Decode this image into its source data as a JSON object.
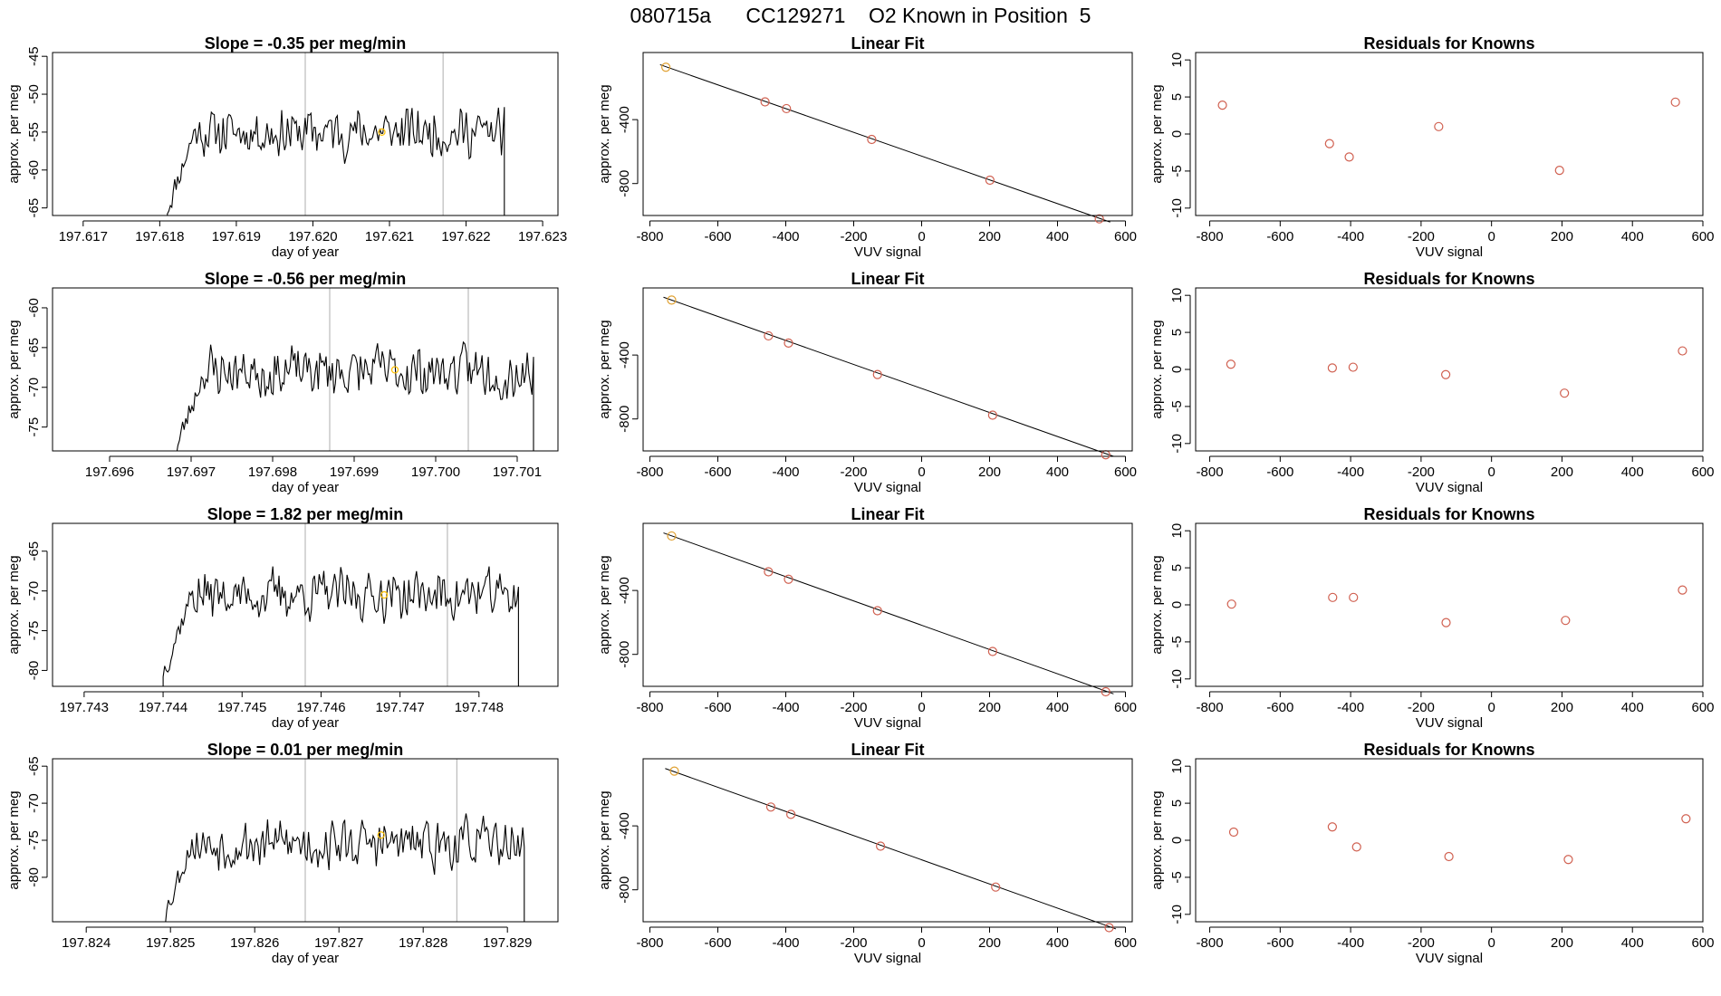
{
  "page": {
    "title": "080715a      CC129271    O2 Known in Position  5"
  },
  "colors": {
    "trace": "#000000",
    "point": "#d06050",
    "first_point": "#e0a030",
    "marker": "#ffc000",
    "vline": "#bbbbbb",
    "box": "#000000"
  },
  "chart_data": [
    {
      "type": "line",
      "row": 0,
      "panel": "time",
      "title": "Slope =  -0.35  per meg/min",
      "xlabel": "day of year",
      "ylabel": "approx. per meg",
      "xlim": [
        197.6166,
        197.6232
      ],
      "ylim": [
        -66,
        -44.5
      ],
      "xticks": [
        197.617,
        197.618,
        197.619,
        197.62,
        197.621,
        197.622,
        197.623
      ],
      "yticks": [
        -65,
        -60,
        -55,
        -50,
        -45
      ],
      "x_start": 197.6181,
      "x_end": 197.6225,
      "seed": 11,
      "base": -55,
      "amp": 2.5,
      "vlines": [
        197.6199,
        197.6217
      ],
      "marker": {
        "x": 197.6209,
        "y": -55
      }
    },
    {
      "type": "scatter",
      "row": 0,
      "panel": "fit",
      "title": "Linear Fit",
      "xlabel": "VUV signal",
      "ylabel": "approx. per meg",
      "xlim": [
        -820,
        620
      ],
      "ylim": [
        -1000,
        20
      ],
      "xticks": [
        -800,
        -600,
        -400,
        -200,
        0,
        200,
        400,
        600
      ],
      "yticks": [
        -400,
        -800
      ],
      "x": [
        -753,
        -461,
        -398,
        -147,
        201,
        523
      ],
      "y": [
        -72,
        -289,
        -331,
        -524,
        -779,
        -1021
      ],
      "line": {
        "x": [
          -770,
          555
        ],
        "y": [
          -56,
          -1041
        ]
      }
    },
    {
      "type": "scatter",
      "row": 0,
      "panel": "resid",
      "title": "Residuals for Knowns",
      "xlabel": "VUV signal",
      "ylabel": "approx. per meg",
      "xlim": [
        -840,
        600
      ],
      "ylim": [
        -11,
        11
      ],
      "xticks": [
        -800,
        -600,
        -400,
        -200,
        0,
        200,
        400,
        600
      ],
      "yticks": [
        -10,
        -5,
        0,
        5,
        10
      ],
      "x": [
        -764,
        -460,
        -404,
        -150,
        193,
        522
      ],
      "y": [
        3.9,
        -1.3,
        -3.1,
        1.0,
        -4.9,
        4.3
      ]
    },
    {
      "type": "line",
      "row": 1,
      "panel": "time",
      "title": "Slope =  -0.56  per meg/min",
      "xlabel": "day of year",
      "ylabel": "approx. per meg",
      "xlim": [
        197.6953,
        197.7015
      ],
      "ylim": [
        -78,
        -57.5
      ],
      "xticks": [
        197.696,
        197.697,
        197.698,
        197.699,
        197.7,
        197.701
      ],
      "yticks": [
        -75,
        -70,
        -65,
        -60
      ],
      "x_start": 197.6968,
      "x_end": 197.7012,
      "seed": 23,
      "base": -68,
      "amp": 2.6,
      "vlines": [
        197.6987,
        197.7004
      ],
      "marker": {
        "x": 197.6995,
        "y": -67.8
      }
    },
    {
      "type": "scatter",
      "row": 1,
      "panel": "fit",
      "title": "Linear Fit",
      "xlabel": "VUV signal",
      "ylabel": "approx. per meg",
      "xlim": [
        -820,
        620
      ],
      "ylim": [
        -1000,
        20
      ],
      "xticks": [
        -800,
        -600,
        -400,
        -200,
        0,
        200,
        400,
        600
      ],
      "yticks": [
        -400,
        -800
      ],
      "x": [
        -736,
        -451,
        -392,
        -130,
        209,
        542
      ],
      "y": [
        -56,
        -280,
        -325,
        -522,
        -776,
        -1024
      ],
      "line": {
        "x": [
          -760,
          565
        ],
        "y": [
          -38,
          -1034
        ]
      }
    },
    {
      "type": "scatter",
      "row": 1,
      "panel": "resid",
      "title": "Residuals for Knowns",
      "xlabel": "VUV signal",
      "ylabel": "approx. per meg",
      "xlim": [
        -840,
        600
      ],
      "ylim": [
        -11,
        11
      ],
      "xticks": [
        -800,
        -600,
        -400,
        -200,
        0,
        200,
        400,
        600
      ],
      "yticks": [
        -10,
        -5,
        0,
        5,
        10
      ],
      "x": [
        -740,
        -452,
        -393,
        -130,
        207,
        542
      ],
      "y": [
        0.7,
        0.2,
        0.3,
        -0.7,
        -3.2,
        2.5
      ]
    },
    {
      "type": "line",
      "row": 2,
      "panel": "time",
      "title": "Slope =  1.82  per meg/min",
      "xlabel": "day of year",
      "ylabel": "approx. per meg",
      "xlim": [
        197.7426,
        197.749
      ],
      "ylim": [
        -82,
        -61.5
      ],
      "xticks": [
        197.743,
        197.744,
        197.745,
        197.746,
        197.747,
        197.748
      ],
      "yticks": [
        -80,
        -75,
        -70,
        -65
      ],
      "x_start": 197.744,
      "x_end": 197.7485,
      "seed": 37,
      "base": -70.5,
      "amp": 2.4,
      "vlines": [
        197.7458,
        197.7476
      ],
      "marker": {
        "x": 197.7468,
        "y": -70.5
      }
    },
    {
      "type": "scatter",
      "row": 2,
      "panel": "fit",
      "title": "Linear Fit",
      "xlabel": "VUV signal",
      "ylabel": "approx. per meg",
      "xlim": [
        -820,
        620
      ],
      "ylim": [
        -1000,
        20
      ],
      "xticks": [
        -800,
        -600,
        -400,
        -200,
        0,
        200,
        400,
        600
      ],
      "yticks": [
        -400,
        -800
      ],
      "x": [
        -736,
        -451,
        -392,
        -130,
        209,
        542
      ],
      "y": [
        -59,
        -283,
        -330,
        -527,
        -782,
        -1034
      ],
      "line": {
        "x": [
          -760,
          565
        ],
        "y": [
          -40,
          -1047
        ]
      }
    },
    {
      "type": "scatter",
      "row": 2,
      "panel": "resid",
      "title": "Residuals for Knowns",
      "xlabel": "VUV signal",
      "ylabel": "approx. per meg",
      "xlim": [
        -840,
        600
      ],
      "ylim": [
        -11,
        11
      ],
      "xticks": [
        -800,
        -600,
        -400,
        -200,
        0,
        200,
        400,
        600
      ],
      "yticks": [
        -10,
        -5,
        0,
        5,
        10
      ],
      "x": [
        -738,
        -451,
        -392,
        -129,
        210,
        542
      ],
      "y": [
        0.1,
        1.0,
        1.0,
        -2.4,
        -2.1,
        2.0
      ]
    },
    {
      "type": "line",
      "row": 3,
      "panel": "time",
      "title": "Slope =  0.01  per meg/min",
      "xlabel": "day of year",
      "ylabel": "approx. per meg",
      "xlim": [
        197.8236,
        197.8296
      ],
      "ylim": [
        -86,
        -64
      ],
      "xticks": [
        197.824,
        197.825,
        197.826,
        197.827,
        197.828,
        197.829
      ],
      "yticks": [
        -80,
        -75,
        -70,
        -65
      ],
      "x_start": 197.8249,
      "x_end": 197.8292,
      "seed": 53,
      "base": -75.5,
      "amp": 2.6,
      "vlines": [
        197.8266,
        197.8284
      ],
      "marker": {
        "x": 197.8275,
        "y": -74.3
      }
    },
    {
      "type": "scatter",
      "row": 3,
      "panel": "fit",
      "title": "Linear Fit",
      "xlabel": "VUV signal",
      "ylabel": "approx. per meg",
      "xlim": [
        -820,
        620
      ],
      "ylim": [
        -1000,
        20
      ],
      "xticks": [
        -800,
        -600,
        -400,
        -200,
        0,
        200,
        400,
        600
      ],
      "yticks": [
        -400,
        -800
      ],
      "x": [
        -728,
        -444,
        -385,
        -121,
        218,
        552
      ],
      "y": [
        -57,
        -282,
        -328,
        -527,
        -783,
        -1037
      ],
      "line": {
        "x": [
          -755,
          572
        ],
        "y": [
          -41,
          -1045
        ]
      }
    },
    {
      "type": "scatter",
      "row": 3,
      "panel": "resid",
      "title": "Residuals for Knowns",
      "xlabel": "VUV signal",
      "ylabel": "approx. per meg",
      "xlim": [
        -840,
        600
      ],
      "ylim": [
        -11,
        11
      ],
      "xticks": [
        -800,
        -600,
        -400,
        -200,
        0,
        200,
        400,
        600
      ],
      "yticks": [
        -10,
        -5,
        0,
        5,
        10
      ],
      "x": [
        -732,
        -452,
        -383,
        -121,
        218,
        552
      ],
      "y": [
        1.1,
        1.8,
        -0.9,
        -2.2,
        -2.6,
        2.9
      ]
    }
  ]
}
